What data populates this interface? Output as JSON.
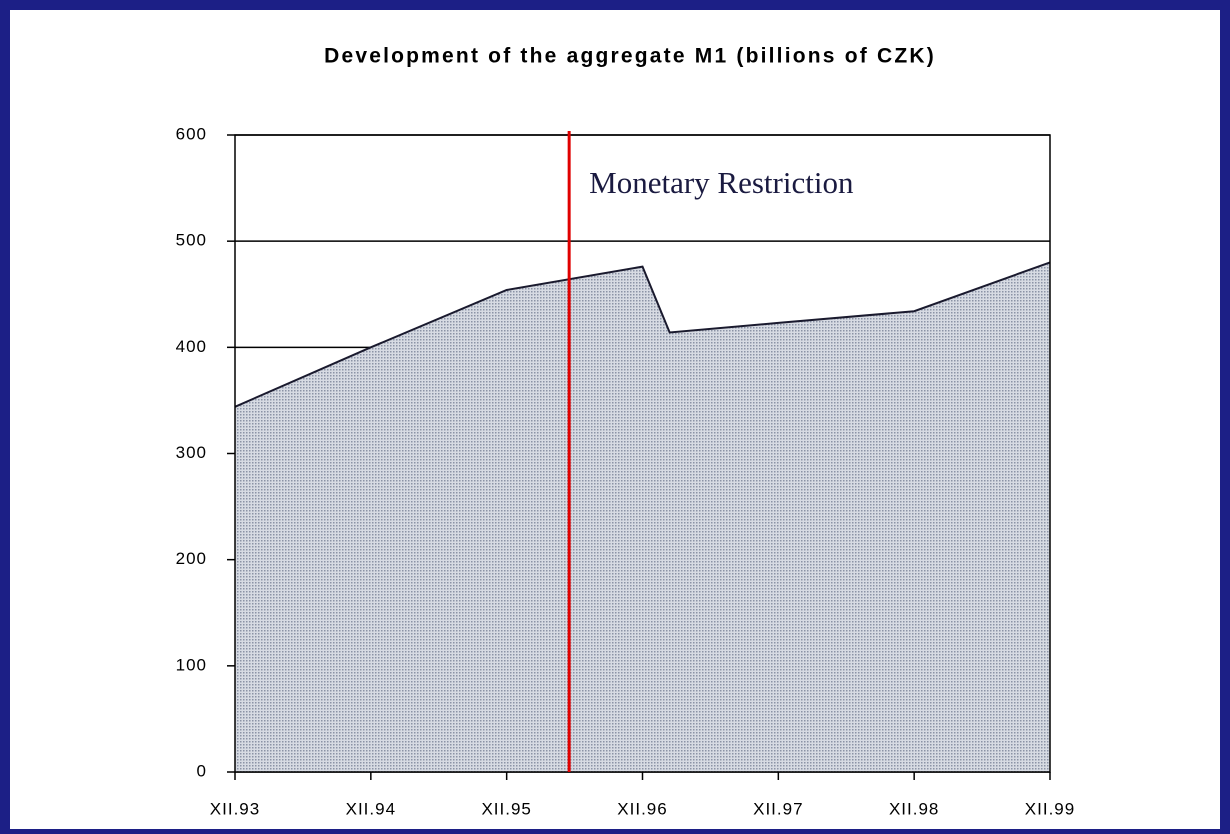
{
  "chart_data": {
    "type": "area",
    "title": "Development of the aggregate M1 (billions of CZK)",
    "x": [
      1994,
      1995,
      1996,
      1997,
      1997.2,
      1998,
      1999,
      2000
    ],
    "values": [
      344,
      400,
      454,
      476,
      414,
      423,
      434,
      480
    ],
    "color": "#b4bccb",
    "xlim": [
      1994,
      2000
    ],
    "xticks": [
      {
        "value": 1994,
        "label": "XII.93"
      },
      {
        "value": 1995,
        "label": "XII.94"
      },
      {
        "value": 1996,
        "label": "XII.95"
      },
      {
        "value": 1997,
        "label": "XII.96"
      },
      {
        "value": 1998,
        "label": "XII.97"
      },
      {
        "value": 1999,
        "label": "XII.98"
      },
      {
        "value": 2000,
        "label": "XII.99"
      }
    ],
    "ylim": [
      0,
      600
    ],
    "yticks": [
      0,
      100,
      200,
      300,
      400,
      500,
      600
    ],
    "grid": true,
    "annotation": {
      "x": 1996.46,
      "label": "Monetary Restriction",
      "color": "#e00000"
    }
  }
}
